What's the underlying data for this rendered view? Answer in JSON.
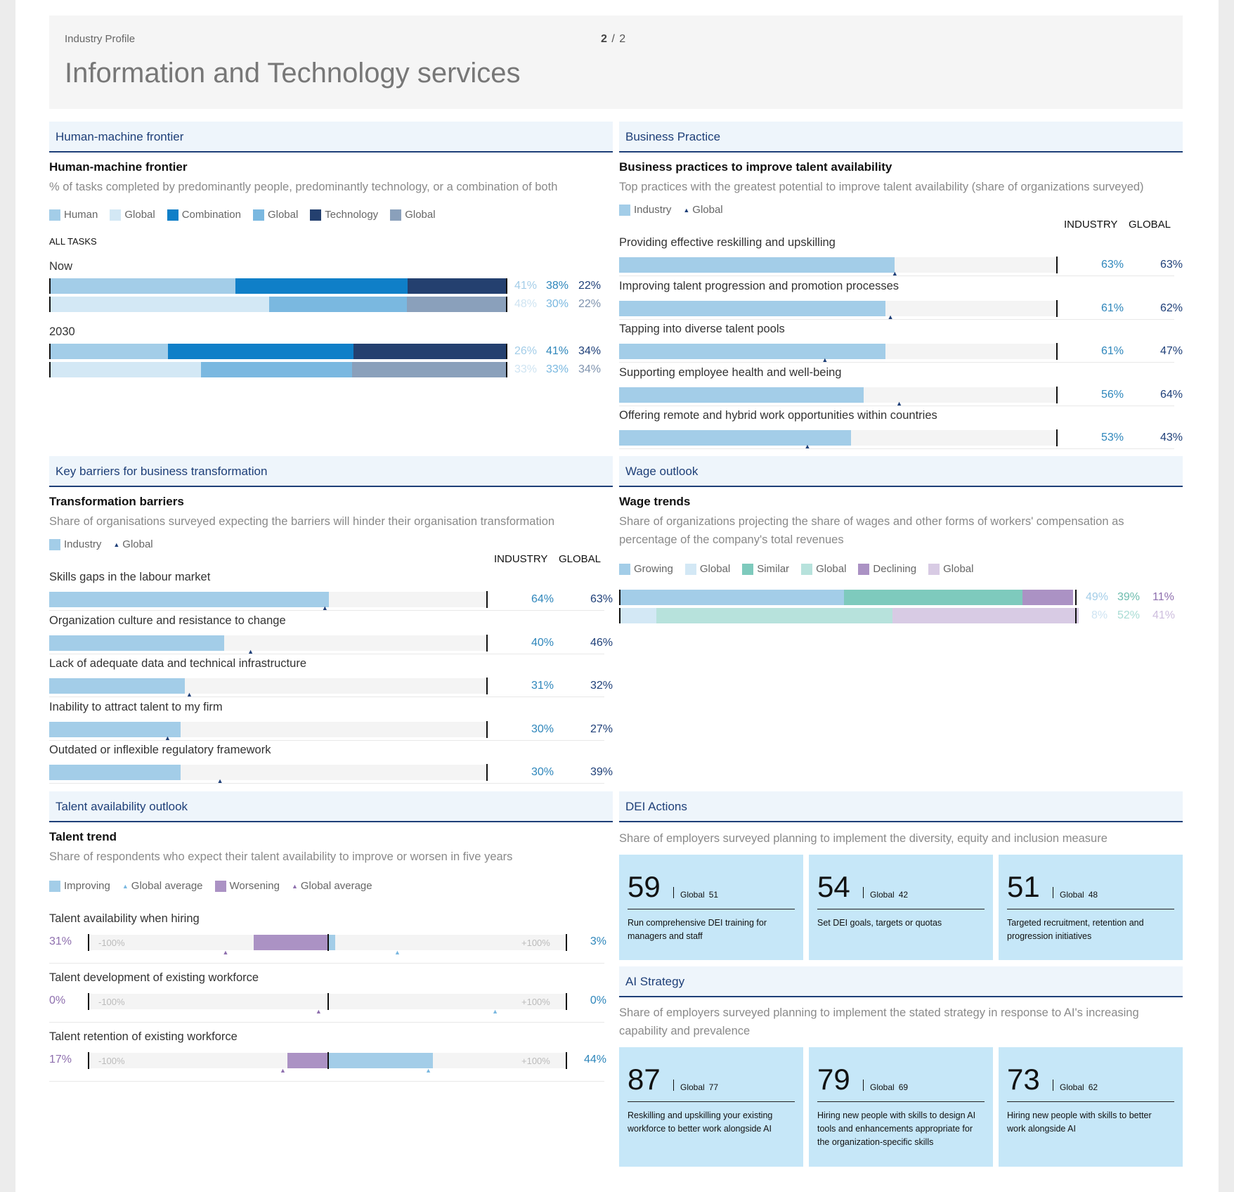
{
  "header": {
    "subtitle": "Industry Profile",
    "title": "Information and Technology services",
    "page_current": "2",
    "page_sep": "/",
    "page_total": "2"
  },
  "hmf": {
    "section": "Human-machine frontier",
    "title": "Human-machine frontier",
    "desc": "% of tasks completed by predominantly people, predominantly technology, or a combination of both",
    "legend": [
      "Human",
      "Global",
      "Combination",
      "Global",
      "Technology",
      "Global"
    ],
    "all_tasks": "ALL TASKS",
    "rows": [
      {
        "label": "Now",
        "industry": [
          41,
          38,
          22
        ],
        "global": [
          48,
          30,
          22
        ],
        "ind_labels": [
          "41%",
          "38%",
          "22%"
        ],
        "glob_labels": [
          "48%",
          "30%",
          "22%"
        ]
      },
      {
        "label": "2030",
        "industry": [
          26,
          41,
          34
        ],
        "global": [
          33,
          33,
          34
        ],
        "ind_labels": [
          "26%",
          "41%",
          "34%"
        ],
        "glob_labels": [
          "33%",
          "33%",
          "34%"
        ]
      }
    ],
    "colors": {
      "human": "#a3cde8",
      "combination": "#0f7fc8",
      "technology": "#24406f",
      "human_g": "#d3e8f5",
      "combination_g": "#7ab8e0",
      "technology_g": "#8aa0bb"
    }
  },
  "bp": {
    "section": "Business Practice",
    "title": "Business practices to improve talent availability",
    "desc": "Top practices with the greatest potential to improve talent availability (share of organizations surveyed)",
    "legend_industry": "Industry",
    "legend_global": "Global",
    "col_industry": "INDUSTRY",
    "col_global": "GLOBAL",
    "items": [
      {
        "label": "Providing effective reskilling and upskilling",
        "industry": 63,
        "global": 63,
        "ind_label": "63%",
        "glob_label": "63%"
      },
      {
        "label": "Improving talent progression and promotion processes",
        "industry": 61,
        "global": 62,
        "ind_label": "61%",
        "glob_label": "62%"
      },
      {
        "label": "Tapping into diverse talent pools",
        "industry": 61,
        "global": 47,
        "ind_label": "61%",
        "glob_label": "47%"
      },
      {
        "label": "Supporting employee health and well-being",
        "industry": 56,
        "global": 64,
        "ind_label": "56%",
        "glob_label": "64%"
      },
      {
        "label": "Offering remote and hybrid work opportunities within countries",
        "industry": 53,
        "global": 43,
        "ind_label": "53%",
        "glob_label": "43%"
      }
    ]
  },
  "kb": {
    "section": "Key barriers for business transformation",
    "title": "Transformation barriers",
    "desc": "Share of organisations surveyed expecting the barriers will hinder their organisation transformation",
    "legend_industry": "Industry",
    "legend_global": "Global",
    "col_industry": "INDUSTRY",
    "col_global": "GLOBAL",
    "items": [
      {
        "label": "Skills gaps in the labour market",
        "industry": 64,
        "global": 63,
        "ind_label": "64%",
        "glob_label": "63%"
      },
      {
        "label": "Organization culture and resistance to change",
        "industry": 40,
        "global": 46,
        "ind_label": "40%",
        "glob_label": "46%"
      },
      {
        "label": "Lack of adequate data and technical infrastructure",
        "industry": 31,
        "global": 32,
        "ind_label": "31%",
        "glob_label": "32%"
      },
      {
        "label": "Inability to attract talent to my firm",
        "industry": 30,
        "global": 27,
        "ind_label": "30%",
        "glob_label": "27%"
      },
      {
        "label": "Outdated or inflexible regulatory framework",
        "industry": 30,
        "global": 39,
        "ind_label": "30%",
        "glob_label": "39%"
      }
    ]
  },
  "wo": {
    "section": "Wage outlook",
    "title": "Wage trends",
    "desc": "Share of organizations projecting the share of wages and other forms of workers' compensation as percentage of the company's total revenues",
    "legend": [
      "Growing",
      "Global",
      "Similar",
      "Global",
      "Declining",
      "Global"
    ],
    "industry": [
      49,
      39,
      11
    ],
    "global": [
      8,
      52,
      41
    ],
    "ind_labels": [
      "49%",
      "39%",
      "11%"
    ],
    "glob_labels": [
      "8%",
      "52%",
      "41%"
    ],
    "colors": {
      "growing": "#a3cde8",
      "similar": "#7ecabd",
      "declining": "#ab92c4",
      "growing_g": "#d3e8f5",
      "similar_g": "#b7e2dc",
      "declining_g": "#d8cbe4"
    }
  },
  "ta": {
    "section": "Talent availability outlook",
    "title": "Talent trend",
    "desc": "Share of respondents who expect their talent availability to improve or worsen in five years",
    "legend": [
      "Improving",
      "Global average",
      "Worsening",
      "Global average"
    ],
    "min_label": "-100%",
    "max_label": "+100%",
    "items": [
      {
        "label": "Talent availability when hiring",
        "worsening": 31,
        "improving": 3,
        "w_label": "31%",
        "i_label": "3%",
        "global_worsening": 43,
        "global_improving": 29
      },
      {
        "label": "Talent development of existing workforce",
        "worsening": 0,
        "improving": 0,
        "w_label": "0%",
        "i_label": "0%",
        "global_worsening": 4,
        "global_improving": 70
      },
      {
        "label": "Talent retention of existing workforce",
        "worsening": 17,
        "improving": 44,
        "w_label": "17%",
        "i_label": "44%",
        "global_worsening": 19,
        "global_improving": 42
      }
    ]
  },
  "dei": {
    "section": "DEI Actions",
    "desc": "Share of employers surveyed planning to implement the diversity, equity and inclusion measure",
    "cards": [
      {
        "value": "59",
        "global_label": "Global",
        "global_value": "51",
        "text": "Run comprehensive DEI training for managers and staff"
      },
      {
        "value": "54",
        "global_label": "Global",
        "global_value": "42",
        "text": "Set DEI goals, targets or quotas"
      },
      {
        "value": "51",
        "global_label": "Global",
        "global_value": "48",
        "text": "Targeted recruitment, retention and progression initiatives"
      }
    ]
  },
  "ai": {
    "section": "AI Strategy",
    "desc": "Share of employers surveyed planning to implement the stated strategy in response to AI's increasing capability and prevalence",
    "cards": [
      {
        "value": "87",
        "global_label": "Global",
        "global_value": "77",
        "text": "Reskilling and upskilling your existing workforce to better work alongside AI"
      },
      {
        "value": "79",
        "global_label": "Global",
        "global_value": "69",
        "text": "Hiring new people with skills to design AI tools and enhancements appropriate for the organization-specific skills"
      },
      {
        "value": "73",
        "global_label": "Global",
        "global_value": "62",
        "text": "Hiring new people with skills to better work alongside AI"
      }
    ]
  }
}
